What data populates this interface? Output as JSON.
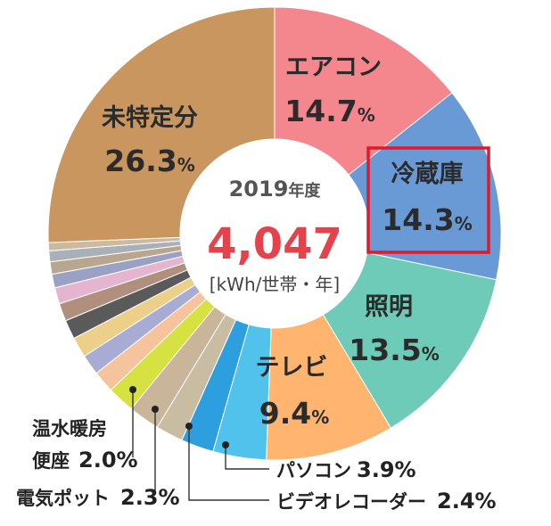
{
  "chart_data": {
    "type": "pie",
    "donut": true,
    "center": {
      "year": "2019",
      "year_suffix": "年度",
      "total": "4,047",
      "unit": "[kWh/世帯・年]"
    },
    "slices": [
      {
        "name": "エアコン",
        "value": 14.7,
        "color": "#f4868e",
        "label_inside": true
      },
      {
        "name": "冷蔵庫",
        "value": 14.3,
        "color": "#6a9ad6",
        "label_inside": true,
        "highlight": true
      },
      {
        "name": "照明",
        "value": 13.5,
        "color": "#6ecbb8",
        "label_inside": true
      },
      {
        "name": "テレビ",
        "value": 9.4,
        "color": "#ffb570",
        "label_inside": true
      },
      {
        "name": "パソコン",
        "value": 3.9,
        "color": "#51c2ec",
        "label_inside": false
      },
      {
        "name": "ビデオレコーダー",
        "value": 2.4,
        "color": "#2e9fde",
        "label_inside": false
      },
      {
        "name": "",
        "value": 2.0,
        "color": "#c8bca2",
        "label_inside": false
      },
      {
        "name": "電気ポット",
        "value": 2.3,
        "color": "#c9b59a",
        "label_inside": false
      },
      {
        "name": "温水暖房便座",
        "value": 2.0,
        "color": "#d5e241",
        "label_inside": false
      },
      {
        "name": "",
        "value": 1.6,
        "color": "#f6c49c",
        "label_inside": false
      },
      {
        "name": "",
        "value": 1.5,
        "color": "#a8acd4",
        "label_inside": false
      },
      {
        "name": "",
        "value": 1.5,
        "color": "#ecd08a",
        "label_inside": false
      },
      {
        "name": "",
        "value": 1.4,
        "color": "#5a5a5a",
        "label_inside": false
      },
      {
        "name": "",
        "value": 1.3,
        "color": "#b08f7d",
        "label_inside": false
      },
      {
        "name": "",
        "value": 1.2,
        "color": "#e5b4cf",
        "label_inside": false
      },
      {
        "name": "",
        "value": 1.0,
        "color": "#9aa1c5",
        "label_inside": false
      },
      {
        "name": "",
        "value": 0.9,
        "color": "#b9a68f",
        "label_inside": false
      },
      {
        "name": "",
        "value": 0.8,
        "color": "#a9b0b8",
        "label_inside": false
      },
      {
        "name": "",
        "value": 0.6,
        "color": "#cdb8a0",
        "label_inside": false
      },
      {
        "name": "未特定分",
        "value": 26.3,
        "color": "#c8965e",
        "label_inside": true
      }
    ],
    "labels": {
      "aircon": {
        "name": "エアコン",
        "pct": "14.7",
        "unit": "%"
      },
      "fridge": {
        "name": "冷蔵庫",
        "pct": "14.3",
        "unit": "%"
      },
      "light": {
        "name": "照明",
        "pct": "13.5",
        "unit": "%"
      },
      "tv": {
        "name": "テレビ",
        "pct": "9.4",
        "unit": "%"
      },
      "unknown": {
        "name": "未特定分",
        "pct": "26.3",
        "unit": "%"
      },
      "pc": {
        "name": "パソコン",
        "pct": "3.9",
        "unit": "%"
      },
      "recorder": {
        "name": "ビデオレコーダー",
        "pct": "2.4",
        "unit": "%"
      },
      "pot": {
        "name": "電気ポット",
        "pct": "2.3",
        "unit": "%"
      },
      "toilet_line1": "温水暖房",
      "toilet_line2": "便座",
      "toilet": {
        "pct": "2.0",
        "unit": "%"
      }
    }
  }
}
